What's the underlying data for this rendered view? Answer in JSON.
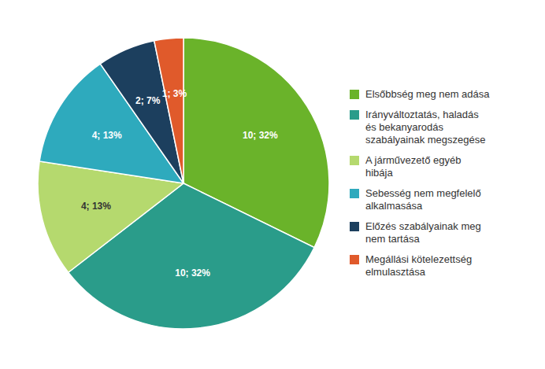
{
  "chart_data": {
    "type": "pie",
    "categories": [
      "Elsőbbség meg nem adása",
      "Irányváltoztatás, haladás\nés bekanyarodás\nszabályainak megszegése",
      "A járművezető egyéb\nhibája",
      "Sebesség nem megfelelő\nalkalmasása",
      "Előzés szabályainak meg\nnem tartása",
      "Megállási kötelezettség\nelmulasztása"
    ],
    "values": [
      10,
      10,
      4,
      4,
      2,
      1
    ],
    "value_labels": [
      "10; 32%",
      "10; 32%",
      "4; 13%",
      "4; 13%",
      "2; 7%",
      "1; 3%"
    ],
    "colors": [
      "#6ab32a",
      "#2a9c8a",
      "#b5d96e",
      "#2eaabd",
      "#1c3f5e",
      "#e05a2b"
    ],
    "data_labels": true,
    "legend": "right"
  }
}
